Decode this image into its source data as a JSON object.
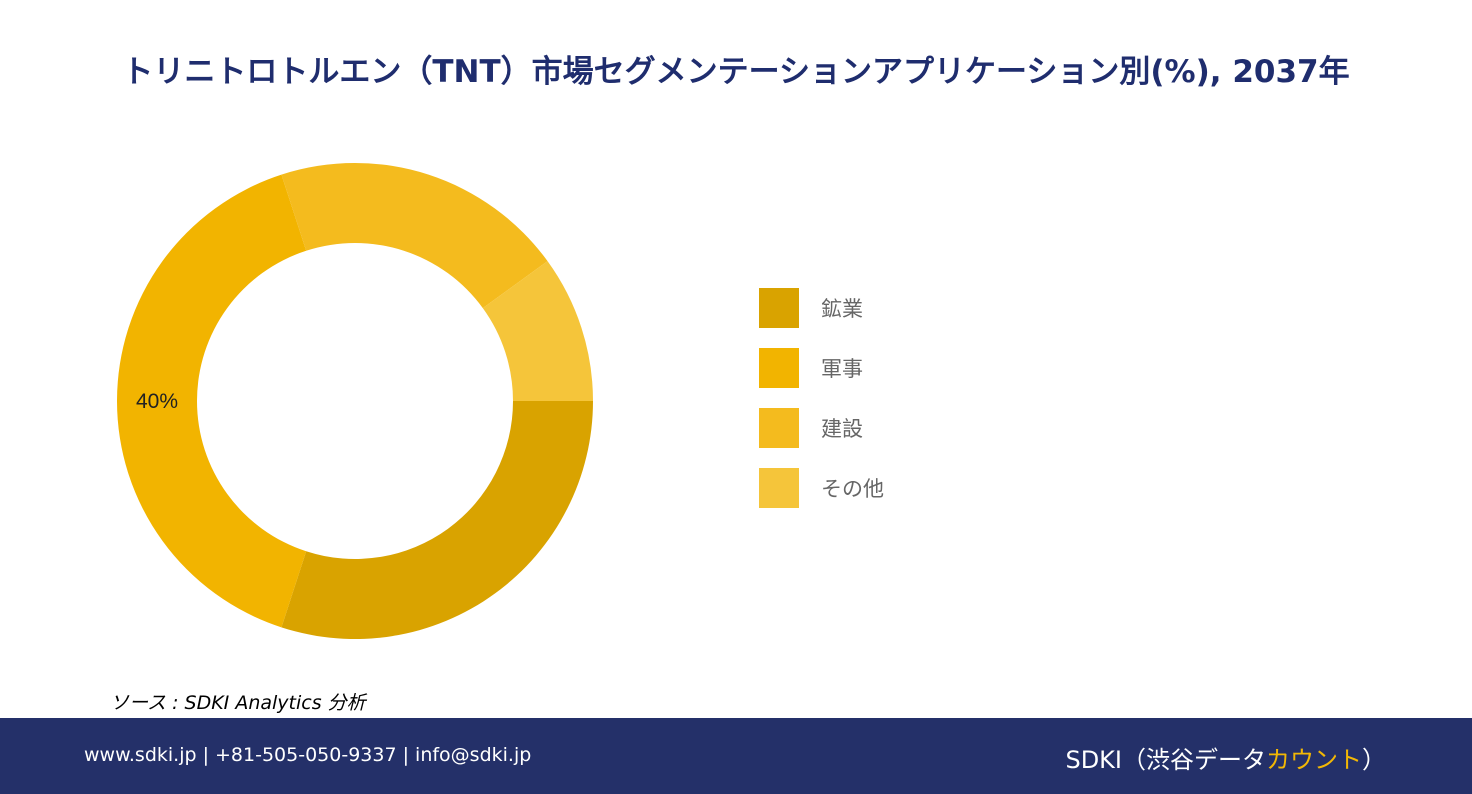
{
  "title": "トリニトロトルエン（TNT）市場セグメンテーションアプリケーション別(%), 2037年",
  "chart_data": {
    "type": "pie",
    "categories": [
      "鉱業",
      "軍事",
      "建設",
      "その他"
    ],
    "values": [
      30,
      40,
      20,
      10
    ],
    "colors": [
      "#d9a300",
      "#f2b400",
      "#f4bb1e",
      "#f5c53a"
    ],
    "data_labels": [
      {
        "category": "軍事",
        "text": "40%"
      }
    ]
  },
  "legend": {
    "items": [
      {
        "label": "鉱業",
        "color": "#d9a300"
      },
      {
        "label": "軍事",
        "color": "#f2b400"
      },
      {
        "label": "建設",
        "color": "#f4bb1e"
      },
      {
        "label": "その他",
        "color": "#f5c53a"
      }
    ]
  },
  "source": "ソース : SDKI Analytics 分析",
  "footer": {
    "contact": "www.sdki.jp | +81-505-050-9337 | info@sdki.jp",
    "brand_prefix": "SDKI（渋谷データ",
    "brand_accent": "カウント",
    "brand_suffix": "）"
  }
}
